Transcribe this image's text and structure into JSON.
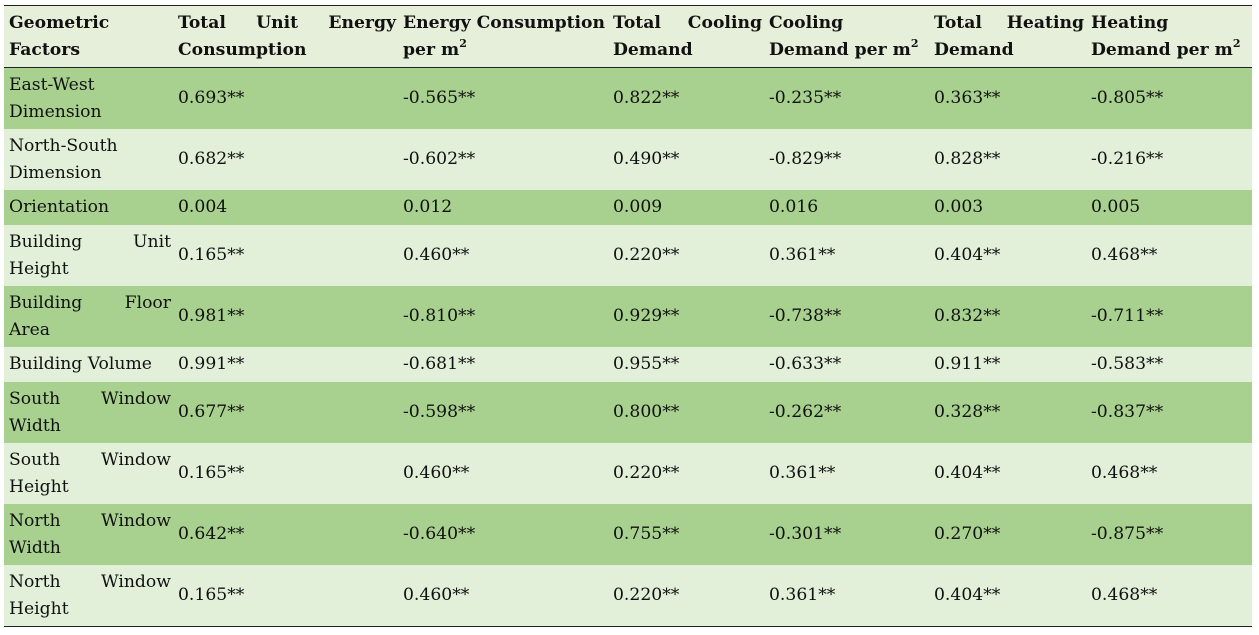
{
  "table": {
    "headers": [
      "Geometric Factors",
      "Total Unit Energy Consumption",
      "Energy Consumption per m",
      "Total Cooling Demand",
      "Cooling Demand per m",
      "Total Heating Demand",
      "Heating Demand per m"
    ],
    "superscript": "2",
    "rows": [
      {
        "factor": "East-West Dimension",
        "values": [
          "0.693**",
          "-0.565**",
          "0.822**",
          "-0.235**",
          "0.363**",
          "-0.805**"
        ]
      },
      {
        "factor": "North-South Dimension",
        "values": [
          "0.682**",
          "-0.602**",
          "0.490**",
          "-0.829**",
          "0.828**",
          "-0.216**"
        ]
      },
      {
        "factor": "Orientation",
        "values": [
          "0.004",
          "0.012",
          "0.009",
          "0.016",
          "0.003",
          "0.005"
        ]
      },
      {
        "factor": "Building Unit Height",
        "values": [
          "0.165**",
          "0.460**",
          "0.220**",
          "0.361**",
          "0.404**",
          "0.468**"
        ]
      },
      {
        "factor": "Building Floor Area",
        "values": [
          "0.981**",
          "-0.810**",
          "0.929**",
          "-0.738**",
          "0.832**",
          "-0.711**"
        ]
      },
      {
        "factor": "Building Volume",
        "values": [
          "0.991**",
          "-0.681**",
          "0.955**",
          "-0.633**",
          "0.911**",
          "-0.583**"
        ]
      },
      {
        "factor": "South Window Width",
        "values": [
          "0.677**",
          "-0.598**",
          "0.800**",
          "-0.262**",
          "0.328**",
          "-0.837**"
        ]
      },
      {
        "factor": "South Window Height",
        "values": [
          "0.165**",
          "0.460**",
          "0.220**",
          "0.361**",
          "0.404**",
          "0.468**"
        ]
      },
      {
        "factor": "North Window Width",
        "values": [
          "0.642**",
          "-0.640**",
          "0.755**",
          "-0.301**",
          "0.270**",
          "-0.875**"
        ]
      },
      {
        "factor": "North Window Height",
        "values": [
          "0.165**",
          "0.460**",
          "0.220**",
          "0.361**",
          "0.404**",
          "0.468**"
        ]
      }
    ]
  }
}
